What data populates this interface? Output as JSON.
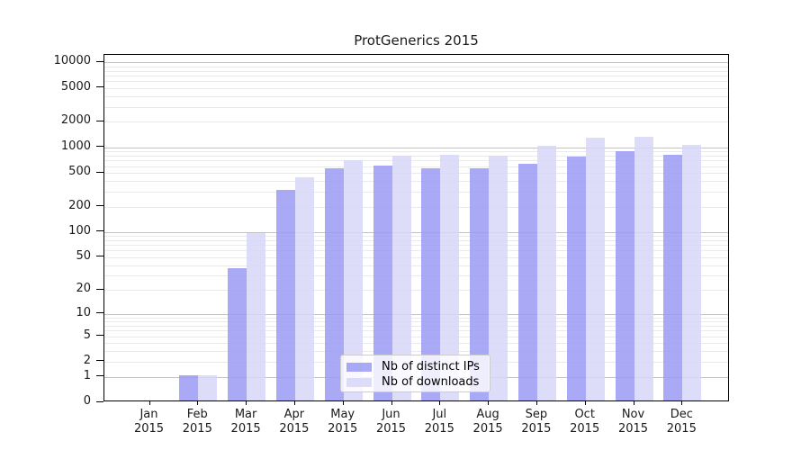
{
  "chart_data": {
    "type": "bar",
    "title": "ProtGenerics 2015",
    "y_scale": "log1p",
    "categories": [
      "Jan",
      "Feb",
      "Mar",
      "Apr",
      "May",
      "Jun",
      "Jul",
      "Aug",
      "Sep",
      "Oct",
      "Nov",
      "Dec"
    ],
    "x_year": "2015",
    "series": [
      {
        "name": "Nb of distinct IPs",
        "color": "#9a9af4",
        "values": [
          0,
          1,
          35,
          300,
          545,
          580,
          545,
          545,
          605,
          750,
          855,
          775
        ]
      },
      {
        "name": "Nb of downloads",
        "color": "#d7d7f9",
        "values": [
          0,
          1,
          92,
          420,
          675,
          755,
          770,
          755,
          1000,
          1230,
          1280,
          1030
        ]
      }
    ],
    "y_ticks": [
      0,
      1,
      2,
      5,
      10,
      20,
      50,
      100,
      200,
      500,
      1000,
      2000,
      5000,
      10000
    ],
    "ylim": [
      0,
      12800
    ],
    "grid": true,
    "legend_position": "bottom-center",
    "colors": {
      "major_grid": "#c3c3c3",
      "minor_grid": "#eaeaea",
      "axis": "#000000",
      "text": "#1a1a1a"
    }
  }
}
